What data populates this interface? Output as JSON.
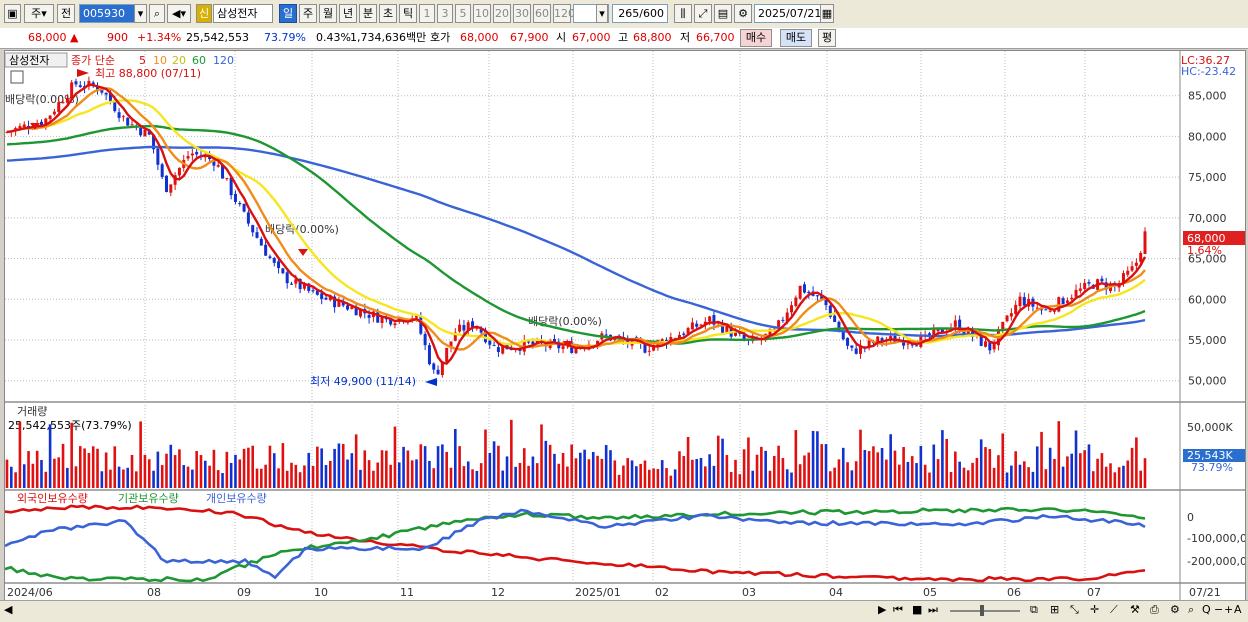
{
  "toolbar": {
    "period": "주",
    "jeon": "전",
    "code": "005930",
    "name": "삼성전자",
    "shin": "신",
    "period_tabs": [
      "일",
      "주",
      "월",
      "년",
      "분",
      "초",
      "틱"
    ],
    "active_tab": "일",
    "interval_tabs": [
      "1",
      "3",
      "5",
      "10",
      "20",
      "30",
      "60",
      "120"
    ],
    "count": "265",
    "count_max": "/600",
    "date": "2025/07/21"
  },
  "quote": {
    "price": "68,000",
    "change": "900",
    "change_pct": "+1.34%",
    "volume": "25,542,553",
    "vol_ratio": "73.79%",
    "turnover": "0.43%",
    "amount": "1,734,636백만",
    "hoga_label": "호가",
    "hoga_ask": "68,000",
    "hoga_bid": "67,900",
    "open_label": "시",
    "open": "67,000",
    "high_label": "고",
    "high": "68,800",
    "low_label": "저",
    "low": "66,700",
    "buy_label": "매수",
    "sell_label": "매도",
    "extra_label": "평"
  },
  "price_panel": {
    "name_tag": "삼성전자",
    "ma_title": "종가 단순",
    "ma_periods": [
      "5",
      "10",
      "20",
      "60",
      "120"
    ],
    "ma_colors": [
      "#d81010",
      "#f08c1a",
      "#f5e61e",
      "#1e9632",
      "#3a63d8"
    ],
    "lc": "LC:36.27",
    "hc": "HC:-23.42",
    "max_label": "최고 88,800 (07/11)",
    "min_label": "최저 49,900 (11/14)",
    "dividend_label": "배당락(0.00%)",
    "price_tag": "68,000",
    "pct_tag": "1.64%",
    "y_ticks": [
      "85,000",
      "80,000",
      "75,000",
      "70,000",
      "65,000",
      "60,000",
      "55,000",
      "50,000"
    ],
    "y_values": [
      85000,
      80000,
      75000,
      70000,
      65000,
      60000,
      55000,
      50000
    ]
  },
  "volume_panel": {
    "title": "거래량",
    "value_label": "25,542,553주(73.79%)",
    "y_tick": "50,000K",
    "tag_value": "25,543K",
    "tag_pct": "73.79%"
  },
  "holding_panel": {
    "legend": [
      "외국인보유수량",
      "기관보유수량",
      "개인보유수량"
    ],
    "y_ticks": [
      "0",
      "-100,000,0",
      "-200,000,0"
    ]
  },
  "x_axis": {
    "labels": [
      "2024/06",
      "08",
      "09",
      "10",
      "11",
      "12",
      "2025/01",
      "02",
      "03",
      "04",
      "05",
      "06",
      "07"
    ],
    "right_label": "07/21"
  },
  "chart_data": {
    "type": "candlestick",
    "title": "삼성전자",
    "ylim": [
      48000,
      90000
    ],
    "high_label": {
      "value": 88800,
      "date": "07/11"
    },
    "low_label": {
      "value": 49900,
      "date": "11/14"
    },
    "last_close": 68000,
    "series": [
      {
        "name": "5",
        "color": "#d81010"
      },
      {
        "name": "10",
        "color": "#f08c1a"
      },
      {
        "name": "20",
        "color": "#f5e61e"
      },
      {
        "name": "60",
        "color": "#1e9632"
      },
      {
        "name": "120",
        "color": "#3a63d8"
      }
    ]
  }
}
